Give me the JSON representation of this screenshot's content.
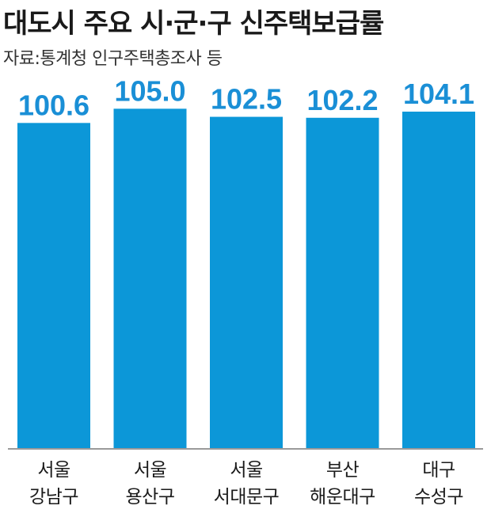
{
  "header": {
    "title": "대도시 주요 시·군·구 신주택보급률",
    "source": "자료:통계청 인구주택총조사 등"
  },
  "colors": {
    "bar": "#0c97d8",
    "value_label": "#1a8fd6",
    "baseline": "#9a9a9a"
  },
  "chart_data": {
    "type": "bar",
    "title": "대도시 주요 시·군·구 신주택보급률",
    "subtitle": "자료:통계청 인구주택총조사 등",
    "categories": [
      [
        "서울",
        "강남구"
      ],
      [
        "서울",
        "용산구"
      ],
      [
        "서울",
        "서대문구"
      ],
      [
        "부산",
        "해운대구"
      ],
      [
        "대구",
        "수성구"
      ]
    ],
    "values": [
      100.6,
      105.0,
      102.5,
      102.2,
      104.1
    ],
    "value_labels": [
      "100.6",
      "105.0",
      "102.5",
      "102.2",
      "104.1"
    ],
    "xlabel": "",
    "ylabel": "",
    "ylim": [
      0,
      111.7
    ],
    "grid": false,
    "legend": "none"
  }
}
